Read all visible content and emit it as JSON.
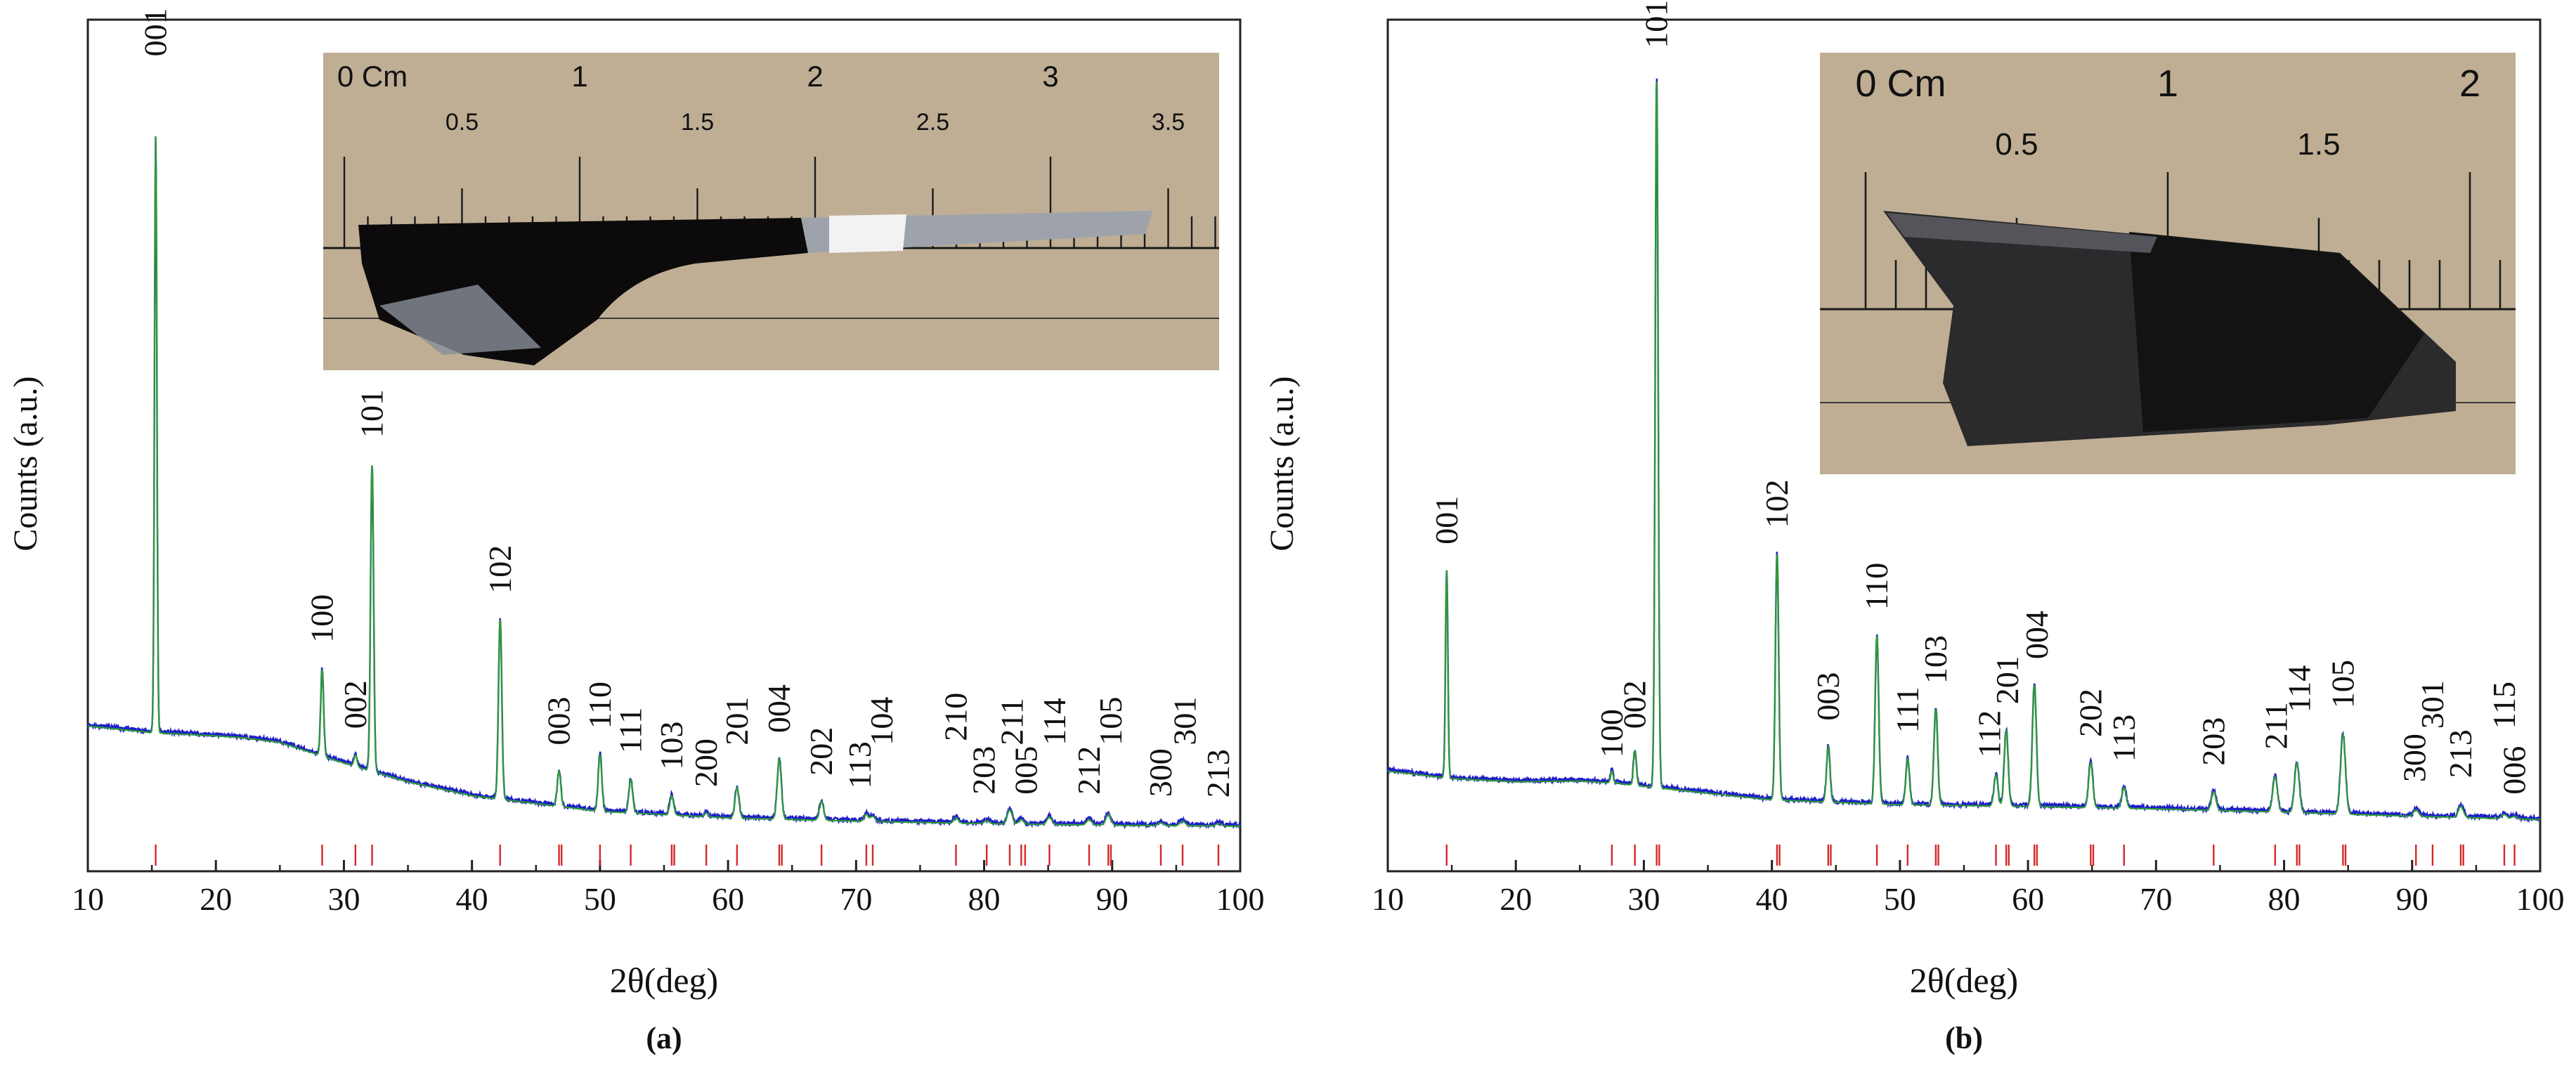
{
  "colors": {
    "pattern": "#1f1fc8",
    "fit": "#2ca02c",
    "ref_ticks": "#d62728",
    "photo_bg": "#bfae94",
    "crystal": "#0c0a0a"
  },
  "chart_data": [
    {
      "type": "line",
      "label": "(a)",
      "xlabel": "2θ(deg)",
      "ylabel": "Counts (a.u.)",
      "xlim": [
        10,
        100
      ],
      "ylim": [
        0,
        100
      ],
      "xticks": [
        10,
        20,
        30,
        40,
        50,
        60,
        70,
        80,
        90,
        100
      ],
      "grid": false,
      "background": [
        [
          10,
          14
        ],
        [
          15,
          13.2
        ],
        [
          20,
          12.8
        ],
        [
          22,
          12.6
        ],
        [
          25,
          12.0
        ],
        [
          30,
          9.5
        ],
        [
          35,
          7.2
        ],
        [
          40,
          5.5
        ],
        [
          50,
          3.6
        ],
        [
          60,
          2.8
        ],
        [
          70,
          2.4
        ],
        [
          80,
          2.1
        ],
        [
          90,
          1.9
        ],
        [
          100,
          1.8
        ]
      ],
      "peaks": [
        {
          "hkl": "001",
          "x": 15.3,
          "y": 86
        },
        {
          "hkl": "100",
          "x": 28.3,
          "y": 21
        },
        {
          "hkl": "002",
          "x": 30.9,
          "y": 10.5
        },
        {
          "hkl": "101",
          "x": 32.2,
          "y": 46
        },
        {
          "hkl": "102",
          "x": 42.2,
          "y": 27
        },
        {
          "hkl": "003",
          "x": 46.8,
          "y": 8.5
        },
        {
          "hkl": "110",
          "x": 50.0,
          "y": 10.5
        },
        {
          "hkl": "111",
          "x": 52.4,
          "y": 7.5
        },
        {
          "hkl": "103",
          "x": 55.6,
          "y": 5.5
        },
        {
          "hkl": "200",
          "x": 58.3,
          "y": 3.4
        },
        {
          "hkl": "201",
          "x": 60.7,
          "y": 6.5
        },
        {
          "hkl": "004",
          "x": 64.0,
          "y": 10.0
        },
        {
          "hkl": "202",
          "x": 67.3,
          "y": 4.8
        },
        {
          "hkl": "113",
          "x": 70.8,
          "y": 3.2
        },
        {
          "hkl": "104",
          "x": 71.3,
          "y": 3.0
        },
        {
          "hkl": "210",
          "x": 77.8,
          "y": 2.8
        },
        {
          "hkl": "203",
          "x": 80.2,
          "y": 2.5
        },
        {
          "hkl": "211",
          "x": 82.0,
          "y": 3.8
        },
        {
          "hkl": "005",
          "x": 82.9,
          "y": 2.6
        },
        {
          "hkl": "114",
          "x": 85.1,
          "y": 2.9
        },
        {
          "hkl": "212",
          "x": 88.2,
          "y": 2.6
        },
        {
          "hkl": "105",
          "x": 89.7,
          "y": 3.2
        },
        {
          "hkl": "300",
          "x": 93.8,
          "y": 2.2
        },
        {
          "hkl": "301",
          "x": 95.5,
          "y": 2.4
        },
        {
          "hkl": "213",
          "x": 98.3,
          "y": 2.1
        }
      ],
      "labels": [
        {
          "text": "001",
          "x": 15.3,
          "y": 95
        },
        {
          "text": "100",
          "x": 28.3,
          "y": 23.5
        },
        {
          "text": "002",
          "x": 30.9,
          "y": 13
        },
        {
          "text": "101",
          "x": 32.2,
          "y": 48.5
        },
        {
          "text": "102",
          "x": 42.2,
          "y": 29.5
        },
        {
          "text": "003",
          "x": 46.8,
          "y": 11
        },
        {
          "text": "110",
          "x": 50.0,
          "y": 13
        },
        {
          "text": "111",
          "x": 52.4,
          "y": 10
        },
        {
          "text": "103",
          "x": 55.6,
          "y": 8
        },
        {
          "text": "200",
          "x": 58.3,
          "y": 5.9
        },
        {
          "text": "201",
          "x": 60.7,
          "y": 11
        },
        {
          "text": "004",
          "x": 64.0,
          "y": 12.5
        },
        {
          "text": "202",
          "x": 67.3,
          "y": 7.3
        },
        {
          "text": "113",
          "x": 70.3,
          "y": 5.7
        },
        {
          "text": "104",
          "x": 72.0,
          "y": 11
        },
        {
          "text": "210",
          "x": 77.8,
          "y": 11.5
        },
        {
          "text": "203",
          "x": 80.0,
          "y": 5.0
        },
        {
          "text": "211",
          "x": 82.2,
          "y": 11
        },
        {
          "text": "005",
          "x": 83.3,
          "y": 5.0
        },
        {
          "text": "114",
          "x": 85.5,
          "y": 11
        },
        {
          "text": "212",
          "x": 88.2,
          "y": 5.0
        },
        {
          "text": "105",
          "x": 89.9,
          "y": 11
        },
        {
          "text": "300",
          "x": 93.8,
          "y": 4.7
        },
        {
          "text": "301",
          "x": 95.7,
          "y": 11
        },
        {
          "text": "213",
          "x": 98.3,
          "y": 4.6
        }
      ],
      "ref_ticks": [
        15.3,
        28.3,
        30.9,
        32.2,
        42.2,
        46.8,
        47.0,
        50.0,
        52.4,
        55.6,
        55.8,
        58.3,
        60.7,
        64.0,
        64.2,
        67.3,
        70.8,
        71.3,
        77.8,
        80.2,
        82.0,
        82.9,
        83.2,
        85.1,
        88.2,
        89.7,
        89.9,
        93.8,
        95.5,
        98.3
      ],
      "inset": {
        "ruler_major": [
          "0 Cm",
          "1",
          "2",
          "3"
        ],
        "ruler_minor": [
          "0.5",
          "1.5",
          "2.5",
          "3.5"
        ]
      }
    },
    {
      "type": "line",
      "label": "(b)",
      "xlabel": "2θ(deg)",
      "ylabel": "Counts (a.u.)",
      "xlim": [
        10,
        100
      ],
      "ylim": [
        0,
        100
      ],
      "xticks": [
        10,
        20,
        30,
        40,
        50,
        60,
        70,
        80,
        90,
        100
      ],
      "grid": false,
      "background": [
        [
          10,
          8.5
        ],
        [
          15,
          7.6
        ],
        [
          20,
          7.2
        ],
        [
          25,
          7.3
        ],
        [
          28,
          7.0
        ],
        [
          35,
          5.8
        ],
        [
          40,
          5.0
        ],
        [
          50,
          4.4
        ],
        [
          60,
          4.2
        ],
        [
          70,
          3.9
        ],
        [
          80,
          3.5
        ],
        [
          90,
          3.0
        ],
        [
          100,
          2.6
        ]
      ],
      "peaks": [
        {
          "hkl": "001",
          "x": 14.6,
          "y": 33
        },
        {
          "hkl": "100",
          "x": 27.5,
          "y": 8.5
        },
        {
          "hkl": "002",
          "x": 29.3,
          "y": 11.0
        },
        {
          "hkl": "101",
          "x": 31.0,
          "y": 93
        },
        {
          "hkl": "102",
          "x": 40.4,
          "y": 35
        },
        {
          "hkl": "003",
          "x": 44.4,
          "y": 11.5
        },
        {
          "hkl": "110",
          "x": 48.2,
          "y": 25
        },
        {
          "hkl": "111",
          "x": 50.6,
          "y": 10.0
        },
        {
          "hkl": "103",
          "x": 52.8,
          "y": 16
        },
        {
          "hkl": "112",
          "x": 57.5,
          "y": 8.0
        },
        {
          "hkl": "201",
          "x": 58.3,
          "y": 13.5
        },
        {
          "hkl": "004",
          "x": 60.5,
          "y": 19
        },
        {
          "hkl": "202",
          "x": 64.9,
          "y": 9.5
        },
        {
          "hkl": "113",
          "x": 67.5,
          "y": 6.5
        },
        {
          "hkl": "203",
          "x": 74.5,
          "y": 6.0
        },
        {
          "hkl": "211",
          "x": 79.3,
          "y": 7.8
        },
        {
          "hkl": "114",
          "x": 81.0,
          "y": 9.5
        },
        {
          "hkl": "105",
          "x": 84.6,
          "y": 13
        },
        {
          "hkl": "300",
          "x": 90.3,
          "y": 3.8
        },
        {
          "hkl": "213",
          "x": 93.8,
          "y": 4.2
        },
        {
          "hkl": "115",
          "x": 97.2,
          "y": 3.2
        },
        {
          "hkl": "006",
          "x": 98.0,
          "y": 3.0
        }
      ],
      "labels": [
        {
          "text": "001",
          "x": 14.6,
          "y": 35.5
        },
        {
          "text": "100",
          "x": 27.5,
          "y": 9.5
        },
        {
          "text": "002",
          "x": 29.3,
          "y": 13
        },
        {
          "text": "101",
          "x": 31.0,
          "y": 96
        },
        {
          "text": "102",
          "x": 40.4,
          "y": 37.5
        },
        {
          "text": "003",
          "x": 44.4,
          "y": 14
        },
        {
          "text": "110",
          "x": 48.2,
          "y": 27.5
        },
        {
          "text": "111",
          "x": 50.6,
          "y": 12.5
        },
        {
          "text": "103",
          "x": 52.8,
          "y": 18.5
        },
        {
          "text": "112",
          "x": 57.0,
          "y": 9.5
        },
        {
          "text": "201",
          "x": 58.4,
          "y": 16
        },
        {
          "text": "004",
          "x": 60.7,
          "y": 21.5
        },
        {
          "text": "202",
          "x": 64.9,
          "y": 12
        },
        {
          "text": "113",
          "x": 67.5,
          "y": 9
        },
        {
          "text": "203",
          "x": 74.5,
          "y": 8.5
        },
        {
          "text": "211",
          "x": 79.4,
          "y": 10.5
        },
        {
          "text": "114",
          "x": 81.2,
          "y": 15
        },
        {
          "text": "105",
          "x": 84.6,
          "y": 15.5
        },
        {
          "text": "300",
          "x": 90.2,
          "y": 6.5
        },
        {
          "text": "301",
          "x": 91.6,
          "y": 13
        },
        {
          "text": "213",
          "x": 93.8,
          "y": 7
        },
        {
          "text": "115",
          "x": 97.2,
          "y": 13
        },
        {
          "text": "006",
          "x": 98.0,
          "y": 5.0
        }
      ],
      "ref_ticks": [
        14.6,
        27.5,
        29.3,
        31.0,
        31.2,
        40.4,
        40.6,
        44.4,
        44.6,
        48.2,
        50.6,
        52.8,
        53.0,
        57.5,
        58.3,
        58.5,
        60.5,
        60.7,
        64.9,
        65.1,
        67.5,
        74.5,
        79.3,
        81.0,
        81.2,
        84.6,
        84.8,
        90.3,
        91.6,
        93.8,
        94.0,
        97.2,
        98.0
      ],
      "inset": {
        "ruler_major": [
          "0 Cm",
          "1",
          "2"
        ],
        "ruler_minor": [
          "0.5",
          "1.5"
        ]
      }
    }
  ]
}
